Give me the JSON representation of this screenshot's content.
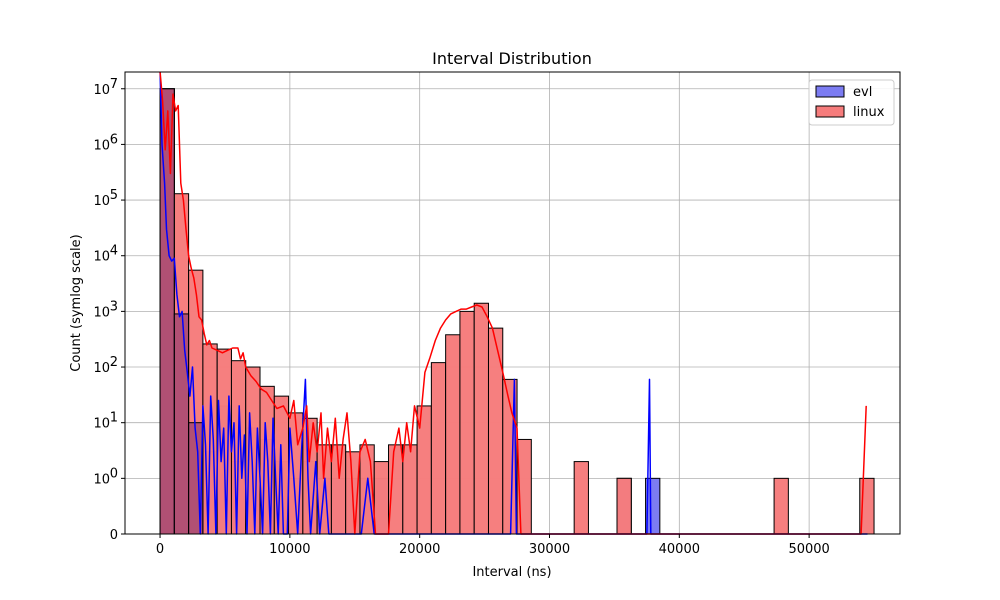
{
  "chart_data": {
    "type": "bar",
    "title": "Interval Distribution",
    "xlabel": "Interval (ns)",
    "ylabel": "Count (symlog scale)",
    "yscale": "symlog",
    "xlim": [
      -2700,
      57000
    ],
    "ylim": [
      0,
      20000000
    ],
    "grid": true,
    "legend_position": "top-right",
    "x_ticks": [
      {
        "value": 0,
        "label": "0"
      },
      {
        "value": 10000,
        "label": "10000"
      },
      {
        "value": 20000,
        "label": "20000"
      },
      {
        "value": 30000,
        "label": "30000"
      },
      {
        "value": 40000,
        "label": "40000"
      },
      {
        "value": 50000,
        "label": "50000"
      }
    ],
    "y_ticks": [
      {
        "value": 0,
        "base": "0",
        "exp": ""
      },
      {
        "value": 1,
        "base": "10",
        "exp": "0"
      },
      {
        "value": 10,
        "base": "10",
        "exp": "1"
      },
      {
        "value": 100,
        "base": "10",
        "exp": "2"
      },
      {
        "value": 1000,
        "base": "10",
        "exp": "3"
      },
      {
        "value": 10000,
        "base": "10",
        "exp": "4"
      },
      {
        "value": 100000,
        "base": "10",
        "exp": "5"
      },
      {
        "value": 1000000,
        "base": "10",
        "exp": "6"
      },
      {
        "value": 10000000,
        "base": "10",
        "exp": "7"
      }
    ],
    "bin_width": 1100,
    "series": [
      {
        "name": "evl",
        "color": "#0000ff",
        "fill": "#7c7cf2",
        "bins": [
          [
            0,
            10000000
          ],
          [
            1100,
            900
          ],
          [
            2200,
            10
          ],
          [
            3300,
            3
          ],
          [
            4400,
            20
          ],
          [
            5500,
            2
          ],
          [
            6600,
            8
          ],
          [
            7700,
            5
          ],
          [
            8800,
            2
          ],
          [
            9900,
            1
          ],
          [
            11000,
            2
          ],
          [
            12100,
            1
          ],
          [
            13200,
            1
          ],
          [
            14300,
            1
          ],
          [
            15400,
            1
          ],
          [
            16500,
            1
          ],
          [
            35200,
            1
          ],
          [
            37400,
            1
          ]
        ],
        "kde": [
          [
            0,
            20000000
          ],
          [
            150,
            1000000
          ],
          [
            350,
            200000
          ],
          [
            500,
            30000
          ],
          [
            700,
            10000
          ],
          [
            900,
            8000
          ],
          [
            1100,
            9000
          ],
          [
            1300,
            2000
          ],
          [
            1500,
            800
          ],
          [
            1700,
            1000
          ],
          [
            1900,
            200
          ],
          [
            2100,
            80
          ],
          [
            2300,
            30
          ],
          [
            2500,
            100
          ],
          [
            2700,
            8
          ],
          [
            2900,
            3
          ],
          [
            3100,
            0
          ],
          [
            3300,
            20
          ],
          [
            3500,
            4
          ],
          [
            3700,
            0
          ],
          [
            3900,
            30
          ],
          [
            4100,
            5
          ],
          [
            4300,
            0
          ],
          [
            4500,
            25
          ],
          [
            4700,
            2
          ],
          [
            4900,
            8
          ],
          [
            5100,
            0
          ],
          [
            5300,
            30
          ],
          [
            5500,
            3
          ],
          [
            5700,
            10
          ],
          [
            5900,
            0
          ],
          [
            6100,
            20
          ],
          [
            6300,
            1
          ],
          [
            6500,
            6
          ],
          [
            6700,
            0
          ],
          [
            6900,
            15
          ],
          [
            7100,
            2
          ],
          [
            7300,
            0
          ],
          [
            7500,
            8
          ],
          [
            7700,
            1
          ],
          [
            7900,
            0
          ],
          [
            8100,
            10
          ],
          [
            8300,
            2
          ],
          [
            8500,
            0
          ],
          [
            8700,
            12
          ],
          [
            8900,
            1
          ],
          [
            9100,
            0
          ],
          [
            9300,
            4
          ],
          [
            9500,
            0
          ],
          [
            9800,
            0
          ],
          [
            10000,
            8
          ],
          [
            10300,
            1
          ],
          [
            10600,
            0
          ],
          [
            10900,
            3
          ],
          [
            11200,
            60
          ],
          [
            11400,
            1
          ],
          [
            11600,
            0
          ],
          [
            12000,
            2
          ],
          [
            12300,
            0
          ],
          [
            12700,
            1
          ],
          [
            13000,
            0
          ],
          [
            13500,
            0
          ],
          [
            14000,
            0
          ],
          [
            14800,
            0
          ],
          [
            15500,
            0
          ],
          [
            16000,
            1
          ],
          [
            16500,
            0
          ],
          [
            20000,
            0
          ],
          [
            24000,
            0
          ],
          [
            27000,
            0
          ],
          [
            27300,
            60
          ],
          [
            27450,
            0
          ],
          [
            37500,
            0
          ],
          [
            37700,
            60
          ],
          [
            37800,
            0
          ],
          [
            54500,
            0
          ]
        ]
      },
      {
        "name": "linux",
        "color": "#ff0000",
        "fill": "#f67c7c",
        "bins": [
          [
            0,
            10000000
          ],
          [
            1100,
            130000
          ],
          [
            2200,
            5500
          ],
          [
            3300,
            260
          ],
          [
            4400,
            210
          ],
          [
            5500,
            130
          ],
          [
            6600,
            100
          ],
          [
            7700,
            45
          ],
          [
            8800,
            30
          ],
          [
            9900,
            15
          ],
          [
            11000,
            12
          ],
          [
            12100,
            4
          ],
          [
            13200,
            4
          ],
          [
            14300,
            3
          ],
          [
            15400,
            4
          ],
          [
            16500,
            2
          ],
          [
            17600,
            4
          ],
          [
            18700,
            4
          ],
          [
            19800,
            20
          ],
          [
            20900,
            120
          ],
          [
            22000,
            380
          ],
          [
            23100,
            1000
          ],
          [
            24200,
            1400
          ],
          [
            25300,
            500
          ],
          [
            26400,
            60
          ],
          [
            27500,
            5
          ],
          [
            31900,
            2
          ],
          [
            35200,
            1
          ],
          [
            47300,
            1
          ],
          [
            53900,
            1
          ]
        ],
        "kde": [
          [
            0,
            20000000
          ],
          [
            200,
            6000000
          ],
          [
            400,
            800000
          ],
          [
            600,
            4000000
          ],
          [
            800,
            300000
          ],
          [
            1000,
            8000000
          ],
          [
            1200,
            4000000
          ],
          [
            1400,
            5000000
          ],
          [
            1600,
            200000
          ],
          [
            1800,
            100000
          ],
          [
            2000,
            30000
          ],
          [
            2200,
            10000
          ],
          [
            2400,
            6000
          ],
          [
            2600,
            4000
          ],
          [
            2800,
            2000
          ],
          [
            3000,
            800
          ],
          [
            3200,
            700
          ],
          [
            3400,
            400
          ],
          [
            3600,
            250
          ],
          [
            3800,
            300
          ],
          [
            4000,
            220
          ],
          [
            4400,
            200
          ],
          [
            4800,
            180
          ],
          [
            5200,
            200
          ],
          [
            5600,
            220
          ],
          [
            6000,
            220
          ],
          [
            6200,
            140
          ],
          [
            6400,
            180
          ],
          [
            6600,
            100
          ],
          [
            7000,
            70
          ],
          [
            7400,
            55
          ],
          [
            7800,
            40
          ],
          [
            8200,
            35
          ],
          [
            8600,
            25
          ],
          [
            9000,
            18
          ],
          [
            9500,
            20
          ],
          [
            10000,
            12
          ],
          [
            10300,
            25
          ],
          [
            10600,
            4
          ],
          [
            11000,
            8
          ],
          [
            11300,
            20
          ],
          [
            11500,
            2
          ],
          [
            11800,
            10
          ],
          [
            12100,
            3
          ],
          [
            12400,
            15
          ],
          [
            12600,
            1
          ],
          [
            12900,
            8
          ],
          [
            13200,
            2
          ],
          [
            13500,
            12
          ],
          [
            13800,
            1
          ],
          [
            14100,
            5
          ],
          [
            14400,
            15
          ],
          [
            14700,
            2
          ],
          [
            15000,
            0
          ],
          [
            15400,
            3
          ],
          [
            15800,
            5
          ],
          [
            16200,
            2
          ],
          [
            16600,
            0
          ],
          [
            17000,
            0
          ],
          [
            17600,
            0
          ],
          [
            18000,
            3
          ],
          [
            18400,
            8
          ],
          [
            18700,
            2
          ],
          [
            19000,
            10
          ],
          [
            19300,
            3
          ],
          [
            19600,
            20
          ],
          [
            20000,
            8
          ],
          [
            20400,
            80
          ],
          [
            20800,
            150
          ],
          [
            21200,
            300
          ],
          [
            21600,
            500
          ],
          [
            22000,
            700
          ],
          [
            22400,
            900
          ],
          [
            22800,
            1000
          ],
          [
            23200,
            1100
          ],
          [
            23600,
            1100
          ],
          [
            24000,
            1200
          ],
          [
            24400,
            1300
          ],
          [
            24800,
            1200
          ],
          [
            25200,
            800
          ],
          [
            25600,
            500
          ],
          [
            26000,
            200
          ],
          [
            26400,
            80
          ],
          [
            26800,
            30
          ],
          [
            27100,
            15
          ],
          [
            27500,
            8
          ],
          [
            27800,
            0
          ],
          [
            28200,
            0
          ],
          [
            35000,
            0
          ],
          [
            54000,
            0
          ],
          [
            54400,
            20
          ]
        ]
      }
    ]
  }
}
